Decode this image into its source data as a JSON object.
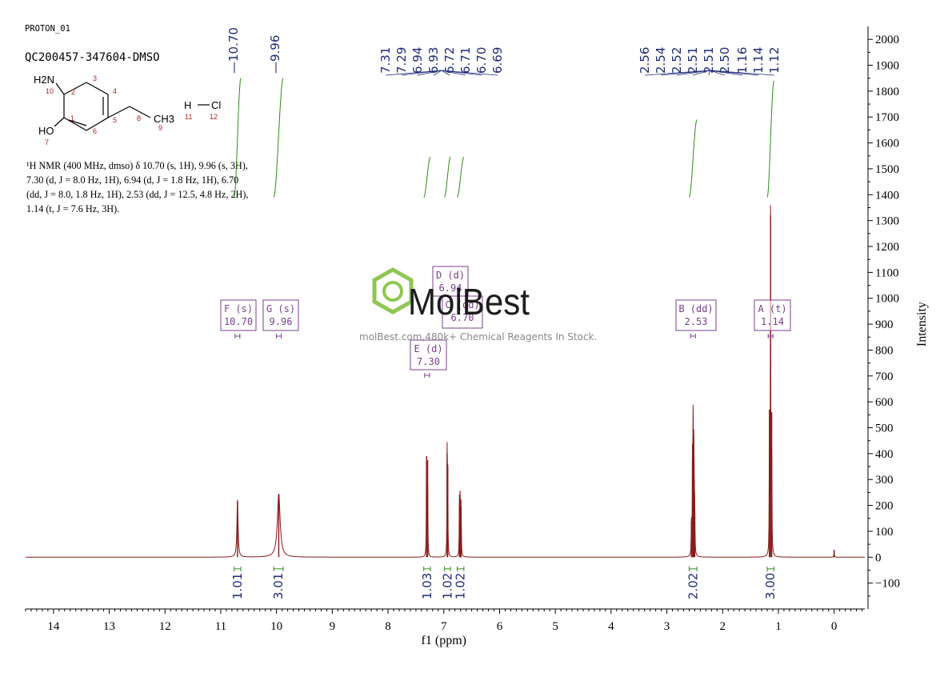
{
  "header": {
    "experiment": "PROTON_01",
    "sample": "QC200457-347604-DMSO"
  },
  "nmr_description": {
    "lines": [
      "¹H NMR (400 MHz, dmso) δ 10.70 (s, 1H), 9.96 (s, 3H),",
      "7.30 (d, J = 8.0 Hz, 1H), 6.94 (d, J = 1.8 Hz, 1H), 6.70",
      "(dd, J = 8.0, 1.8 Hz, 1H), 2.53 (dd, J = 12.5, 4.8 Hz, 2H),",
      "1.14 (t, J = 7.6 Hz, 3H)."
    ]
  },
  "structure": {
    "labels": [
      "H2N",
      "10",
      "HO",
      "7",
      "1",
      "2",
      "3",
      "4",
      "5",
      "6",
      "8",
      "CH3",
      "9",
      "H",
      "Cl",
      "11",
      "12"
    ]
  },
  "watermark": {
    "brand": "MolBest",
    "tagline": "molBest.com,480k+ Chemical Reagents In Stock."
  },
  "peak_labels": {
    "group1": [
      "10.70"
    ],
    "group2": [
      "9.96"
    ],
    "group3": [
      "7.31",
      "7.29",
      "6.94",
      "6.93",
      "6.72",
      "6.71",
      "6.70",
      "6.69"
    ],
    "group4": [
      "2.56",
      "2.54",
      "2.52",
      "2.51",
      "2.51",
      "2.50",
      "1.16",
      "1.14",
      "1.12"
    ]
  },
  "chart_data": {
    "type": "line",
    "title": "",
    "xlabel": "f1 (ppm)",
    "ylabel": "Intensity",
    "xlim": [
      14.5,
      -0.55
    ],
    "ylim": [
      -200,
      2050
    ],
    "x_ticks": [
      14,
      13,
      12,
      11,
      10,
      9,
      8,
      7,
      6,
      5,
      4,
      3,
      2,
      1,
      0
    ],
    "y_ticks": [
      -100,
      0,
      100,
      200,
      300,
      400,
      500,
      600,
      700,
      800,
      900,
      1000,
      1100,
      1200,
      1300,
      1400,
      1500,
      1600,
      1700,
      1800,
      1900,
      2000
    ],
    "peaks": [
      {
        "ppm": 10.7,
        "height": 220,
        "width": 0.012
      },
      {
        "ppm": 9.96,
        "height": 245,
        "width": 0.03
      },
      {
        "ppm": 7.31,
        "height": 390,
        "width": 0.004
      },
      {
        "ppm": 7.29,
        "height": 375,
        "width": 0.004
      },
      {
        "ppm": 6.94,
        "height": 400,
        "width": 0.004
      },
      {
        "ppm": 6.93,
        "height": 350,
        "width": 0.004
      },
      {
        "ppm": 6.72,
        "height": 205,
        "width": 0.004
      },
      {
        "ppm": 6.71,
        "height": 210,
        "width": 0.004
      },
      {
        "ppm": 6.7,
        "height": 200,
        "width": 0.004
      },
      {
        "ppm": 6.69,
        "height": 195,
        "width": 0.004
      },
      {
        "ppm": 2.56,
        "height": 140,
        "width": 0.004
      },
      {
        "ppm": 2.54,
        "height": 380,
        "width": 0.004
      },
      {
        "ppm": 2.53,
        "height": 460,
        "width": 0.004
      },
      {
        "ppm": 2.52,
        "height": 470,
        "width": 0.004
      },
      {
        "ppm": 2.51,
        "height": 300,
        "width": 0.004
      },
      {
        "ppm": 2.5,
        "height": 170,
        "width": 0.004
      },
      {
        "ppm": 1.16,
        "height": 570,
        "width": 0.004
      },
      {
        "ppm": 1.14,
        "height": 1320,
        "width": 0.004
      },
      {
        "ppm": 1.12,
        "height": 560,
        "width": 0.004
      },
      {
        "ppm": 0.0,
        "height": 28,
        "width": 0.004
      }
    ],
    "integrals": [
      {
        "from": 10.76,
        "to": 10.64,
        "value": "1.01",
        "start": 1390,
        "end": 1850
      },
      {
        "from": 10.05,
        "to": 9.88,
        "value": "3.01",
        "start": 1390,
        "end": 1850
      },
      {
        "from": 7.36,
        "to": 7.24,
        "value": "1.03",
        "start": 1390,
        "end": 1545
      },
      {
        "from": 6.99,
        "to": 6.88,
        "value": "1.02",
        "start": 1390,
        "end": 1545
      },
      {
        "from": 6.76,
        "to": 6.64,
        "value": "1.02",
        "start": 1390,
        "end": 1545
      },
      {
        "from": 2.6,
        "to": 2.46,
        "value": "2.02",
        "start": 1390,
        "end": 1690
      },
      {
        "from": 1.2,
        "to": 1.08,
        "value": "3.00",
        "start": 1390,
        "end": 1840
      }
    ],
    "multiplets": [
      {
        "label": "F (s)",
        "shift": "10.70",
        "ppm": 10.7
      },
      {
        "label": "G (s)",
        "shift": "9.96",
        "ppm": 9.96
      },
      {
        "label": "D (d)",
        "shift": "6.94",
        "ppm": 6.93
      },
      {
        "label": "C (dd)",
        "shift": "6.70",
        "ppm": 6.7
      },
      {
        "label": "E (d)",
        "shift": "7.30",
        "ppm": 7.3
      },
      {
        "label": "B (dd)",
        "shift": "2.53",
        "ppm": 2.53
      },
      {
        "label": "A (t)",
        "shift": "1.14",
        "ppm": 1.14
      }
    ]
  },
  "colors": {
    "spectrum": "#8b1a1a",
    "integral": "#2e8b1a",
    "label_blue": "#1f2a78",
    "multiplet_box": "#7b3f8c",
    "watermark_green": "#8bc34a"
  }
}
